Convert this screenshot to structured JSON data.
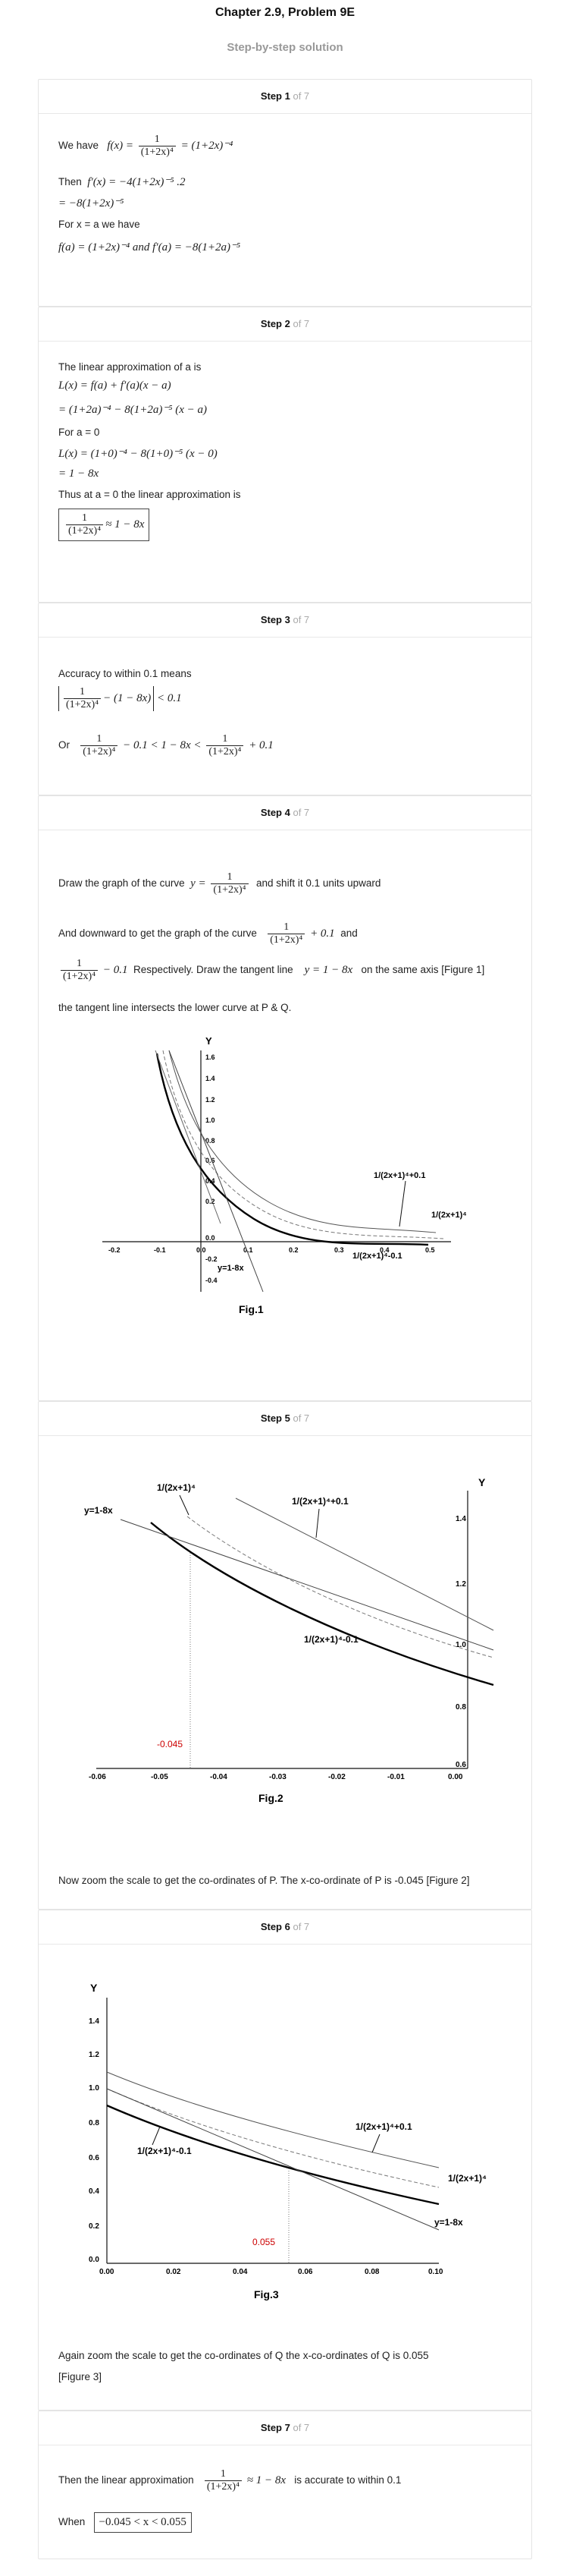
{
  "page": {
    "title": "Chapter 2.9, Problem 9E",
    "subtitle": "Step-by-step solution"
  },
  "steps": [
    {
      "label": "Step 1",
      "of": "of 7"
    },
    {
      "label": "Step 2",
      "of": "of 7"
    },
    {
      "label": "Step 3",
      "of": "of 7"
    },
    {
      "label": "Step 4",
      "of": "of 7"
    },
    {
      "label": "Step 5",
      "of": "of 7"
    },
    {
      "label": "Step 6",
      "of": "of 7"
    },
    {
      "label": "Step 7",
      "of": "of 7"
    }
  ],
  "step1": {
    "we_have": "We have",
    "f_lhs": "f(x) =",
    "f_num": "1",
    "f_den": "(1+2x)⁴",
    "f_rhs": "= (1+2x)⁻⁴",
    "then": "Then",
    "deriv": "f′(x) = −4(1+2x)⁻⁵ .2",
    "deriv2": "= −8(1+2x)⁻⁵",
    "for_xa": "For x = a we have",
    "fa": "f(a) = (1+2x)⁻⁴ and f′(a) = −8(1+2a)⁻⁵"
  },
  "step2": {
    "intro": "The linear approximation of a is",
    "l1": "L(x) = f(a) + f′(a)(x − a)",
    "l2": "= (1+2a)⁻⁴ − 8(1+2a)⁻⁵ (x − a)",
    "for_a0": "For a = 0",
    "l3": "L(x) = (1+0)⁻⁴ − 8(1+0)⁻⁵ (x − 0)",
    "l4": "= 1 − 8x",
    "thus": "Thus at a = 0 the linear approximation is",
    "res_num": "1",
    "res_den": "(1+2x)⁴",
    "res_rhs": "≈ 1 − 8x"
  },
  "step3": {
    "intro": "Accuracy to within 0.1 means",
    "a_num": "1",
    "a_den": "(1+2x)⁴",
    "a_rest": "− (1 − 8x)",
    "a_lt": "< 0.1",
    "or": "Or",
    "b_rest1": "− 0.1 < 1 − 8x <",
    "b_rest2": "+ 0.1"
  },
  "step4": {
    "t1a": "Draw the graph of the curve",
    "t1b": "y =",
    "t1c": "and shift it 0.1 units upward",
    "t2a": "And downward to get the graph of the curve",
    "t2b": "+ 0.1",
    "t2c": "and",
    "t3b": "− 0.1",
    "t3c": "Respectively. Draw the tangent line",
    "t3d": "y = 1 − 8x",
    "t3e": "on the same axis [Figure 1]",
    "t4": "the tangent line intersects the lower curve at P & Q.",
    "num": "1",
    "den": "(1+2x)⁴"
  },
  "fig1": {
    "caption": "Fig.1",
    "yaxis": "Y",
    "xticks": [
      "-0.2",
      "-0.1",
      "0.0",
      "0.1",
      "0.2",
      "0.3",
      "0.4",
      "0.5"
    ],
    "yticks": [
      "1.6",
      "1.4",
      "1.2",
      "1.0",
      "0.8",
      "0.6",
      "0.4",
      "0.2",
      "0.0",
      "-0.2",
      "-0.4"
    ],
    "lbl_upper": "1/(2x+1)⁴+0.1",
    "lbl_mid": "1/(2x+1)⁴",
    "lbl_lower": "1/(2x+1)⁴-0.1",
    "lbl_tangent": "y=1-8x"
  },
  "fig2": {
    "caption": "Fig.2",
    "yaxis": "Y",
    "xticks": [
      "-0.06",
      "-0.05",
      "-0.04",
      "-0.03",
      "-0.02",
      "-0.01",
      "0.00"
    ],
    "yticks": [
      "1.4",
      "1.2",
      "1.0",
      "0.8",
      "0.6"
    ],
    "lbl_mid": "1/(2x+1)⁴",
    "lbl_upper": "1/(2x+1)⁴+0.1",
    "lbl_lower": "1/(2x+1)⁴-0.1",
    "lbl_tangent": "y=1-8x",
    "point": "-0.045"
  },
  "step5": {
    "text": "Now zoom the scale to get the co-ordinates of P. The x-co-ordinate of P is -0.045 [Figure 2]"
  },
  "fig3": {
    "caption": "Fig.3",
    "yaxis": "Y",
    "xticks": [
      "0.00",
      "0.02",
      "0.04",
      "0.06",
      "0.08",
      "0.10"
    ],
    "yticks": [
      "1.4",
      "1.2",
      "1.0",
      "0.8",
      "0.6",
      "0.4",
      "0.2",
      "0.0"
    ],
    "lbl_upper": "1/(2x+1)⁴+0.1",
    "lbl_mid": "1/(2x+1)⁴",
    "lbl_lower": "1/(2x+1)⁴-0.1",
    "lbl_tangent": "y=1-8x",
    "point": "0.055"
  },
  "step6": {
    "text1": "Again zoom the scale to get the co-ordinates of Q the x-co-ordinates of Q is 0.055",
    "text2": "[Figure 3]"
  },
  "step7": {
    "t1": "Then the linear approximation",
    "num": "1",
    "den": "(1+2x)⁴",
    "rhs": "≈ 1 − 8x",
    "t2": "is accurate to within 0.1",
    "when": "When",
    "result": "−0.045 < x < 0.055"
  },
  "colors": {
    "accent_red": "#cc0000",
    "muted": "#999999"
  }
}
